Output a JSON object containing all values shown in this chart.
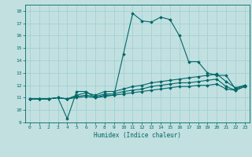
{
  "xlabel": "Humidex (Indice chaleur)",
  "bg_color": "#c2e0e0",
  "grid_color": "#9ecece",
  "line_color": "#006868",
  "xlim": [
    -0.5,
    23.5
  ],
  "ylim": [
    9,
    18.5
  ],
  "xticks": [
    0,
    1,
    2,
    3,
    4,
    5,
    6,
    7,
    8,
    9,
    10,
    11,
    12,
    13,
    14,
    15,
    16,
    17,
    18,
    19,
    20,
    21,
    22,
    23
  ],
  "yticks": [
    9,
    10,
    11,
    12,
    13,
    14,
    15,
    16,
    17,
    18
  ],
  "series1_x": [
    0,
    1,
    2,
    3,
    4,
    5,
    6,
    7,
    8,
    9,
    10,
    11,
    12,
    13,
    14,
    15,
    16,
    17,
    18,
    19,
    20,
    21,
    22,
    23
  ],
  "series1_y": [
    10.9,
    10.9,
    10.9,
    11.0,
    9.3,
    11.5,
    11.5,
    11.0,
    11.2,
    11.2,
    14.5,
    17.8,
    17.2,
    17.1,
    17.5,
    17.3,
    16.0,
    13.9,
    13.9,
    13.0,
    12.8,
    12.8,
    11.7,
    12.0
  ],
  "series2_x": [
    0,
    1,
    2,
    3,
    4,
    5,
    6,
    7,
    8,
    9,
    10,
    11,
    12,
    13,
    14,
    15,
    16,
    17,
    18,
    19,
    20,
    21,
    22,
    23
  ],
  "series2_y": [
    10.9,
    10.9,
    10.9,
    11.0,
    10.9,
    11.2,
    11.4,
    11.2,
    11.5,
    11.5,
    11.7,
    11.9,
    12.0,
    12.2,
    12.3,
    12.4,
    12.5,
    12.6,
    12.7,
    12.8,
    12.9,
    12.3,
    11.8,
    12.0
  ],
  "series3_x": [
    0,
    1,
    2,
    3,
    4,
    5,
    6,
    7,
    8,
    9,
    10,
    11,
    12,
    13,
    14,
    15,
    16,
    17,
    18,
    19,
    20,
    21,
    22,
    23
  ],
  "series3_y": [
    10.9,
    10.9,
    10.9,
    11.0,
    10.9,
    11.1,
    11.2,
    11.1,
    11.3,
    11.3,
    11.5,
    11.6,
    11.7,
    11.9,
    12.0,
    12.1,
    12.2,
    12.2,
    12.3,
    12.4,
    12.5,
    11.9,
    11.6,
    11.9
  ],
  "series4_x": [
    0,
    1,
    2,
    3,
    4,
    5,
    6,
    7,
    8,
    9,
    10,
    11,
    12,
    13,
    14,
    15,
    16,
    17,
    18,
    19,
    20,
    21,
    22,
    23
  ],
  "series4_y": [
    10.9,
    10.9,
    10.9,
    11.0,
    10.9,
    11.0,
    11.1,
    11.0,
    11.1,
    11.2,
    11.3,
    11.4,
    11.5,
    11.6,
    11.7,
    11.8,
    11.9,
    11.9,
    12.0,
    12.0,
    12.1,
    11.7,
    11.6,
    11.9
  ]
}
